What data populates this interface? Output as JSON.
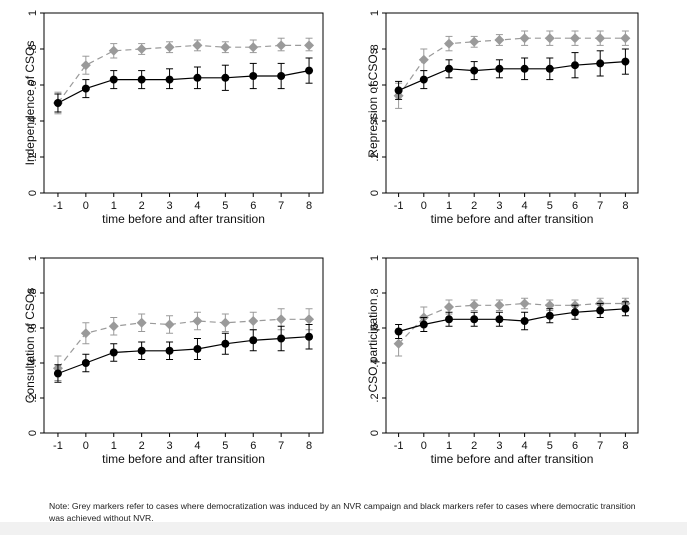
{
  "chart_data": [
    {
      "type": "line",
      "ylabel": "Independence of CSOs",
      "xlabel": "time before and after transition",
      "x": [
        -1,
        0,
        1,
        2,
        3,
        4,
        5,
        6,
        7,
        8
      ],
      "xticks": [
        "-1",
        "0",
        "1",
        "2",
        "3",
        "4",
        "5",
        "6",
        "7",
        "8"
      ],
      "yticks": [
        "0",
        ".2",
        ".4",
        ".6",
        ".8",
        "1"
      ],
      "ylim": [
        0,
        1
      ],
      "grid": false,
      "series": [
        {
          "color": "#9a9a9a",
          "marker": "diamond",
          "line": "dashed",
          "values": [
            0.5,
            0.71,
            0.79,
            0.8,
            0.81,
            0.82,
            0.81,
            0.81,
            0.82,
            0.82
          ],
          "ci": [
            [
              0.44,
              0.56
            ],
            [
              0.66,
              0.76
            ],
            [
              0.75,
              0.83
            ],
            [
              0.77,
              0.83
            ],
            [
              0.78,
              0.84
            ],
            [
              0.79,
              0.85
            ],
            [
              0.78,
              0.84
            ],
            [
              0.78,
              0.85
            ],
            [
              0.79,
              0.86
            ],
            [
              0.79,
              0.86
            ]
          ]
        },
        {
          "color": "#000000",
          "marker": "circle",
          "line": "solid",
          "values": [
            0.5,
            0.58,
            0.63,
            0.63,
            0.63,
            0.64,
            0.64,
            0.65,
            0.65,
            0.68
          ],
          "ci": [
            [
              0.45,
              0.55
            ],
            [
              0.53,
              0.63
            ],
            [
              0.58,
              0.68
            ],
            [
              0.58,
              0.68
            ],
            [
              0.58,
              0.69
            ],
            [
              0.58,
              0.7
            ],
            [
              0.57,
              0.71
            ],
            [
              0.58,
              0.72
            ],
            [
              0.58,
              0.72
            ],
            [
              0.61,
              0.75
            ]
          ]
        }
      ]
    },
    {
      "type": "line",
      "ylabel": "Repression of CSOs",
      "xlabel": "time before and after transition",
      "x": [
        -1,
        0,
        1,
        2,
        3,
        4,
        5,
        6,
        7,
        8
      ],
      "xticks": [
        "-1",
        "0",
        "1",
        "2",
        "3",
        "4",
        "5",
        "6",
        "7",
        "8"
      ],
      "yticks": [
        "0",
        ".2",
        ".4",
        ".6",
        ".8",
        "1"
      ],
      "ylim": [
        0,
        1
      ],
      "grid": false,
      "series": [
        {
          "color": "#9a9a9a",
          "marker": "diamond",
          "line": "dashed",
          "values": [
            0.54,
            0.74,
            0.83,
            0.84,
            0.85,
            0.86,
            0.86,
            0.86,
            0.86,
            0.86
          ],
          "ci": [
            [
              0.47,
              0.61
            ],
            [
              0.68,
              0.8
            ],
            [
              0.79,
              0.87
            ],
            [
              0.81,
              0.87
            ],
            [
              0.82,
              0.88
            ],
            [
              0.82,
              0.9
            ],
            [
              0.82,
              0.9
            ],
            [
              0.82,
              0.9
            ],
            [
              0.82,
              0.9
            ],
            [
              0.82,
              0.9
            ]
          ]
        },
        {
          "color": "#000000",
          "marker": "circle",
          "line": "solid",
          "values": [
            0.57,
            0.63,
            0.69,
            0.68,
            0.69,
            0.69,
            0.69,
            0.71,
            0.72,
            0.73
          ],
          "ci": [
            [
              0.52,
              0.62
            ],
            [
              0.58,
              0.68
            ],
            [
              0.64,
              0.74
            ],
            [
              0.63,
              0.73
            ],
            [
              0.64,
              0.74
            ],
            [
              0.63,
              0.75
            ],
            [
              0.63,
              0.75
            ],
            [
              0.64,
              0.78
            ],
            [
              0.65,
              0.79
            ],
            [
              0.66,
              0.8
            ]
          ]
        }
      ]
    },
    {
      "type": "line",
      "ylabel": "Consultation of CSOs",
      "xlabel": "time before and after transition",
      "x": [
        -1,
        0,
        1,
        2,
        3,
        4,
        5,
        6,
        7,
        8
      ],
      "xticks": [
        "-1",
        "0",
        "1",
        "2",
        "3",
        "4",
        "5",
        "6",
        "7",
        "8"
      ],
      "yticks": [
        "0",
        ".2",
        ".4",
        ".6",
        ".8",
        "1"
      ],
      "ylim": [
        0,
        1
      ],
      "grid": false,
      "series": [
        {
          "color": "#9a9a9a",
          "marker": "diamond",
          "line": "dashed",
          "values": [
            0.37,
            0.57,
            0.61,
            0.63,
            0.62,
            0.64,
            0.63,
            0.64,
            0.65,
            0.65
          ],
          "ci": [
            [
              0.3,
              0.44
            ],
            [
              0.51,
              0.63
            ],
            [
              0.56,
              0.66
            ],
            [
              0.58,
              0.68
            ],
            [
              0.57,
              0.67
            ],
            [
              0.59,
              0.69
            ],
            [
              0.58,
              0.68
            ],
            [
              0.59,
              0.69
            ],
            [
              0.59,
              0.71
            ],
            [
              0.59,
              0.71
            ]
          ]
        },
        {
          "color": "#000000",
          "marker": "circle",
          "line": "solid",
          "values": [
            0.34,
            0.4,
            0.46,
            0.47,
            0.47,
            0.48,
            0.51,
            0.53,
            0.54,
            0.55
          ],
          "ci": [
            [
              0.29,
              0.39
            ],
            [
              0.35,
              0.45
            ],
            [
              0.41,
              0.51
            ],
            [
              0.42,
              0.52
            ],
            [
              0.42,
              0.52
            ],
            [
              0.42,
              0.54
            ],
            [
              0.45,
              0.57
            ],
            [
              0.47,
              0.59
            ],
            [
              0.47,
              0.61
            ],
            [
              0.48,
              0.62
            ]
          ]
        }
      ]
    },
    {
      "type": "line",
      "ylabel": "CSO participation",
      "xlabel": "time before and after transition",
      "x": [
        -1,
        0,
        1,
        2,
        3,
        4,
        5,
        6,
        7,
        8
      ],
      "xticks": [
        "-1",
        "0",
        "1",
        "2",
        "3",
        "4",
        "5",
        "6",
        "7",
        "8"
      ],
      "yticks": [
        "0",
        ".2",
        ".4",
        ".6",
        ".8",
        "1"
      ],
      "ylim": [
        0,
        1
      ],
      "grid": false,
      "series": [
        {
          "color": "#9a9a9a",
          "marker": "diamond",
          "line": "dashed",
          "values": [
            0.51,
            0.66,
            0.72,
            0.73,
            0.73,
            0.74,
            0.73,
            0.73,
            0.74,
            0.74
          ],
          "ci": [
            [
              0.44,
              0.58
            ],
            [
              0.61,
              0.72
            ],
            [
              0.68,
              0.76
            ],
            [
              0.7,
              0.76
            ],
            [
              0.7,
              0.76
            ],
            [
              0.71,
              0.77
            ],
            [
              0.7,
              0.76
            ],
            [
              0.7,
              0.76
            ],
            [
              0.71,
              0.77
            ],
            [
              0.71,
              0.77
            ]
          ]
        },
        {
          "color": "#000000",
          "marker": "circle",
          "line": "solid",
          "values": [
            0.58,
            0.62,
            0.65,
            0.65,
            0.65,
            0.64,
            0.67,
            0.69,
            0.7,
            0.71
          ],
          "ci": [
            [
              0.54,
              0.62
            ],
            [
              0.58,
              0.66
            ],
            [
              0.61,
              0.69
            ],
            [
              0.61,
              0.69
            ],
            [
              0.61,
              0.69
            ],
            [
              0.59,
              0.69
            ],
            [
              0.63,
              0.71
            ],
            [
              0.65,
              0.73
            ],
            [
              0.66,
              0.74
            ],
            [
              0.67,
              0.75
            ]
          ]
        }
      ]
    }
  ],
  "note": "Note: Grey markers refer to cases where democratization was induced by an NVR campaign and black markers refer to cases where democratic transition was achieved without NVR."
}
